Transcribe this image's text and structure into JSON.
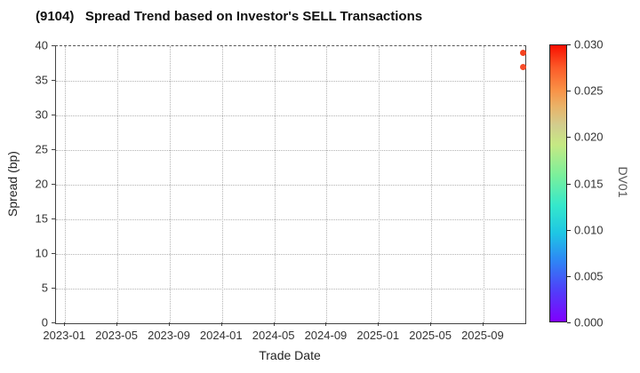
{
  "figure": {
    "title": "(9104)   Spread Trend based on Investor's SELL Transactions"
  },
  "chart_data": {
    "type": "scatter",
    "title": "(9104)   Spread Trend based on Investor's SELL Transactions",
    "xlabel": "Trade Date",
    "ylabel": "Spread (bp)",
    "xtick_labels": [
      "2023-01",
      "2023-05",
      "2023-09",
      "2024-01",
      "2024-05",
      "2024-09",
      "2025-01",
      "2025-05",
      "2025-09"
    ],
    "xtick_month_step": 4,
    "xlim_months_from_2023_01": [
      -0.7,
      35.2
    ],
    "ytick_labels": [
      "0",
      "5",
      "10",
      "15",
      "20",
      "25",
      "30",
      "35",
      "40"
    ],
    "ylim": [
      0,
      40
    ],
    "grid": "dotted",
    "points": [
      {
        "date": "2025-12",
        "spread_bp": 39,
        "dv01": 0.029,
        "color": "#f5421f"
      },
      {
        "date": "2025-12",
        "spread_bp": 37,
        "dv01": 0.028,
        "color": "#f74c2a"
      }
    ],
    "colorbar": {
      "label": "DV01",
      "ticks": [
        "0.000",
        "0.005",
        "0.010",
        "0.015",
        "0.020",
        "0.025",
        "0.030"
      ],
      "range": [
        0.0,
        0.03
      ],
      "colormap": "rainbow"
    }
  }
}
